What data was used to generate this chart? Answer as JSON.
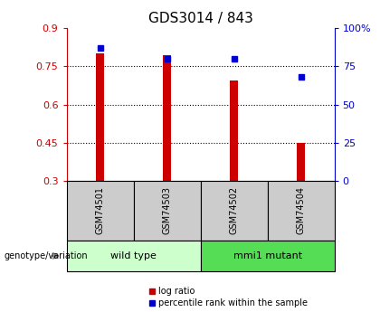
{
  "title": "GDS3014 / 843",
  "samples": [
    "GSM74501",
    "GSM74503",
    "GSM74502",
    "GSM74504"
  ],
  "log_ratio": [
    0.8,
    0.795,
    0.695,
    0.45
  ],
  "percentile": [
    87,
    80,
    80,
    68
  ],
  "log_ratio_baseline": 0.3,
  "left_ylim": [
    0.3,
    0.9
  ],
  "left_yticks": [
    0.3,
    0.45,
    0.6,
    0.75,
    0.9
  ],
  "right_ylim": [
    0,
    100
  ],
  "right_yticks": [
    0,
    25,
    50,
    75,
    100
  ],
  "right_yticklabels": [
    "0",
    "25",
    "50",
    "75",
    "100%"
  ],
  "bar_color": "#cc0000",
  "dot_color": "#0000cc",
  "groups": [
    {
      "label": "wild type",
      "indices": [
        0,
        1
      ],
      "color": "#ccffcc"
    },
    {
      "label": "mmi1 mutant",
      "indices": [
        2,
        3
      ],
      "color": "#55dd55"
    }
  ],
  "sample_box_color": "#cccccc",
  "left_axis_color": "#cc0000",
  "right_axis_color": "#0000cc",
  "bar_width": 0.12,
  "title_fontsize": 11,
  "tick_fontsize": 8,
  "sample_fontsize": 7,
  "group_fontsize": 8,
  "legend_fontsize": 7,
  "genotype_fontsize": 7
}
